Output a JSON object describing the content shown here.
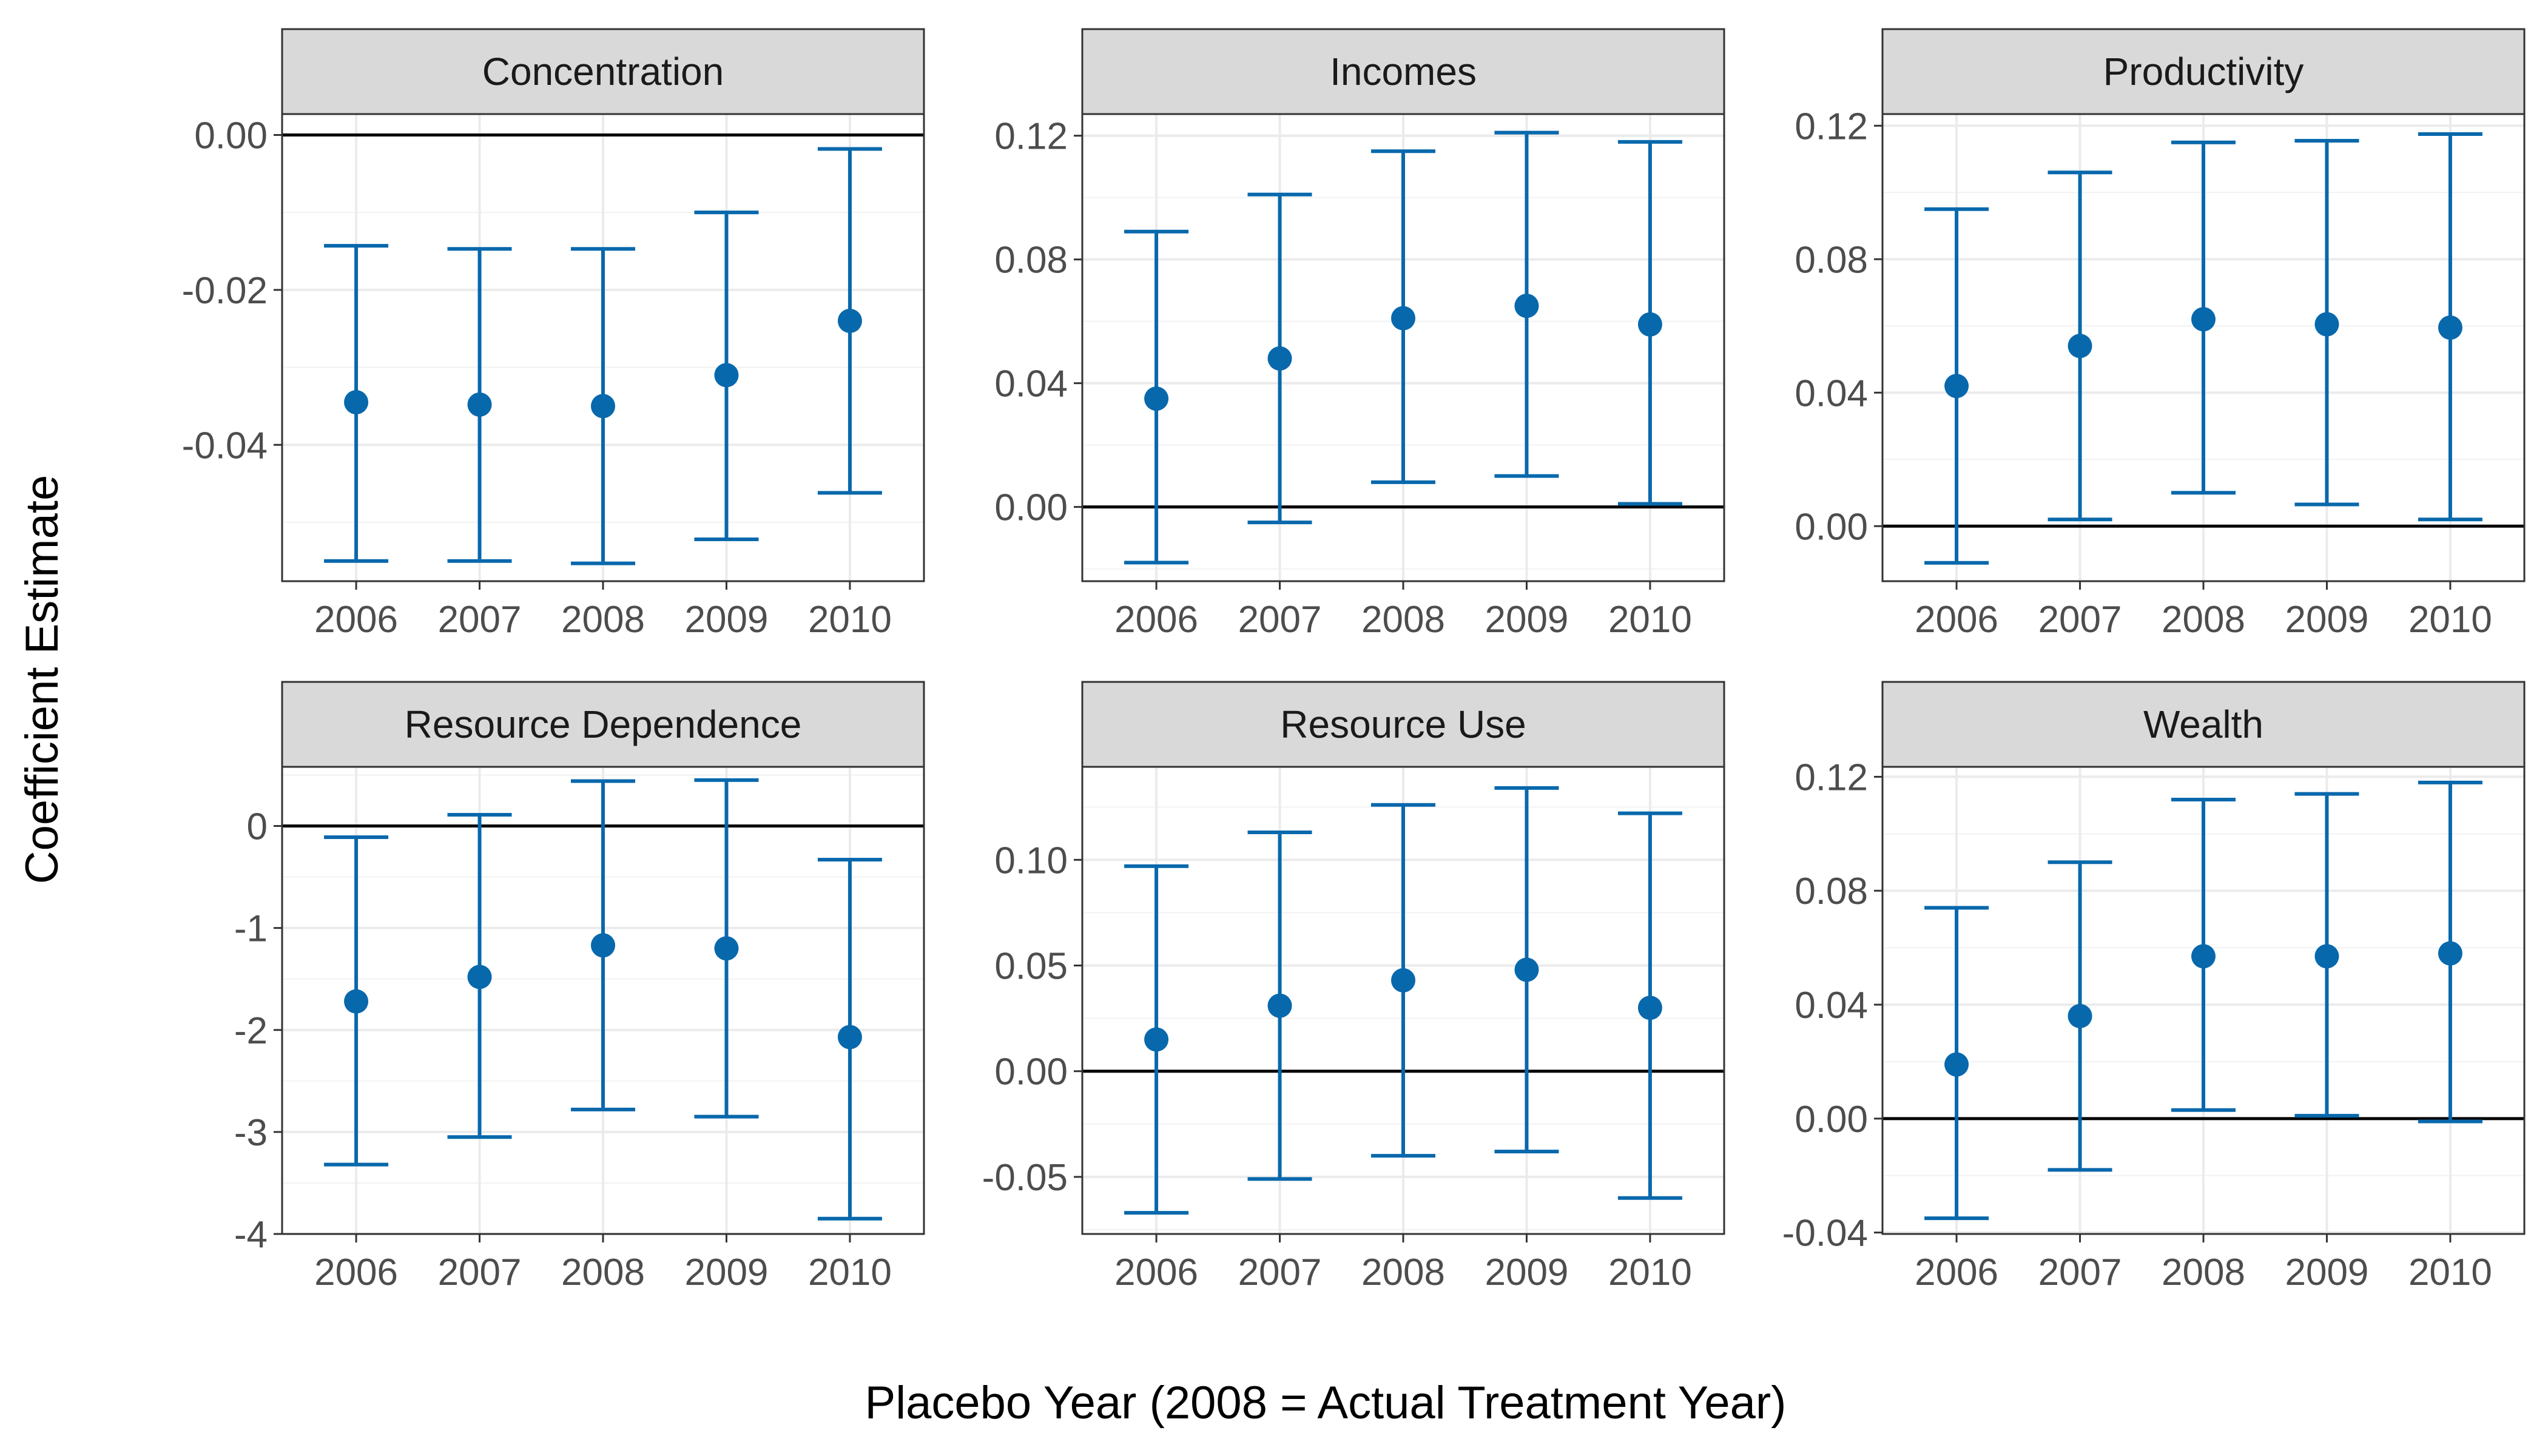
{
  "figure": {
    "xlabel": "Placebo Year (2008 = Actual Treatment Year)",
    "ylabel": "Coefficient Estimate",
    "point_color": "#0868AC",
    "strip_color": "#D9D9D9"
  },
  "chart_data": [
    {
      "type": "scatter",
      "title": "Concentration",
      "categories": [
        "2006",
        "2007",
        "2008",
        "2009",
        "2010"
      ],
      "series": [
        {
          "values": [
            -0.0345,
            -0.0348,
            -0.035,
            -0.031,
            -0.024
          ]
        }
      ],
      "error_bars": {
        "lower": [
          -0.055,
          -0.055,
          -0.0553,
          -0.0522,
          -0.0462
        ],
        "upper": [
          -0.0143,
          -0.0147,
          -0.0147,
          -0.01,
          -0.0018
        ]
      },
      "reference_line": 0,
      "ylim": [
        -0.0576,
        0.0027
      ],
      "yticks": [
        0.0,
        -0.02,
        -0.04
      ],
      "ytick_labels": [
        "0.00",
        "-0.02",
        "-0.04"
      ],
      "ygrid_minor": [
        0.01,
        -0.01,
        -0.03,
        -0.05
      ],
      "grid": true
    },
    {
      "type": "scatter",
      "title": "Incomes",
      "categories": [
        "2006",
        "2007",
        "2008",
        "2009",
        "2010"
      ],
      "series": [
        {
          "values": [
            0.035,
            0.048,
            0.061,
            0.065,
            0.059
          ]
        }
      ],
      "error_bars": {
        "lower": [
          -0.018,
          -0.005,
          0.008,
          0.01,
          0.001
        ],
        "upper": [
          0.089,
          0.101,
          0.115,
          0.121,
          0.118
        ]
      },
      "reference_line": 0,
      "ylim": [
        -0.024,
        0.127
      ],
      "yticks": [
        0.0,
        0.04,
        0.08,
        0.12
      ],
      "ytick_labels": [
        "0.00",
        "0.04",
        "0.08",
        "0.12"
      ],
      "ygrid_minor": [
        -0.02,
        0.02,
        0.06,
        0.1
      ],
      "grid": true
    },
    {
      "type": "scatter",
      "title": "Productivity",
      "categories": [
        "2006",
        "2007",
        "2008",
        "2009",
        "2010"
      ],
      "series": [
        {
          "values": [
            0.042,
            0.054,
            0.062,
            0.0605,
            0.0595
          ]
        }
      ],
      "error_bars": {
        "lower": [
          -0.011,
          0.002,
          0.01,
          0.0065,
          0.002
        ],
        "upper": [
          0.095,
          0.106,
          0.115,
          0.1155,
          0.1175
        ]
      },
      "reference_line": 0,
      "ylim": [
        -0.0165,
        0.1235
      ],
      "yticks": [
        0.0,
        0.04,
        0.08,
        0.12
      ],
      "ytick_labels": [
        "0.00",
        "0.04",
        "0.08",
        "0.12"
      ],
      "ygrid_minor": [
        0.02,
        0.06,
        0.1
      ],
      "grid": true
    },
    {
      "type": "scatter",
      "title": "Resource Dependence",
      "categories": [
        "2006",
        "2007",
        "2008",
        "2009",
        "2010"
      ],
      "series": [
        {
          "values": [
            -1.72,
            -1.48,
            -1.17,
            -1.2,
            -2.07
          ]
        }
      ],
      "error_bars": {
        "lower": [
          -3.32,
          -3.05,
          -2.78,
          -2.85,
          -3.85
        ],
        "upper": [
          -0.11,
          0.11,
          0.44,
          0.45,
          -0.33
        ]
      },
      "reference_line": 0,
      "ylim": [
        -4.0,
        0.58
      ],
      "yticks": [
        0,
        -1,
        -2,
        -3,
        -4
      ],
      "ytick_labels": [
        "0",
        "-1",
        "-2",
        "-3",
        "-4"
      ],
      "ygrid_minor": [
        0.5,
        -0.5,
        -1.5,
        -2.5,
        -3.5
      ],
      "grid": true
    },
    {
      "type": "scatter",
      "title": "Resource Use",
      "categories": [
        "2006",
        "2007",
        "2008",
        "2009",
        "2010"
      ],
      "series": [
        {
          "values": [
            0.015,
            0.031,
            0.043,
            0.048,
            0.03
          ]
        }
      ],
      "error_bars": {
        "lower": [
          -0.067,
          -0.051,
          -0.04,
          -0.038,
          -0.06
        ],
        "upper": [
          0.097,
          0.113,
          0.126,
          0.134,
          0.122
        ]
      },
      "reference_line": 0,
      "ylim": [
        -0.077,
        0.144
      ],
      "yticks": [
        -0.05,
        0.0,
        0.05,
        0.1
      ],
      "ytick_labels": [
        "-0.05",
        "0.00",
        "0.05",
        "0.10"
      ],
      "ygrid_minor": [
        -0.075,
        -0.025,
        0.025,
        0.075,
        0.125
      ],
      "grid": true
    },
    {
      "type": "scatter",
      "title": "Wealth",
      "categories": [
        "2006",
        "2007",
        "2008",
        "2009",
        "2010"
      ],
      "series": [
        {
          "values": [
            0.019,
            0.036,
            0.057,
            0.057,
            0.058
          ]
        }
      ],
      "error_bars": {
        "lower": [
          -0.035,
          -0.018,
          0.003,
          0.001,
          -0.001
        ],
        "upper": [
          0.074,
          0.09,
          0.112,
          0.114,
          0.118
        ]
      },
      "reference_line": 0,
      "ylim": [
        -0.0405,
        0.1235
      ],
      "yticks": [
        -0.04,
        0.0,
        0.04,
        0.08,
        0.12
      ],
      "ytick_labels": [
        "-0.04",
        "0.00",
        "0.04",
        "0.08",
        "0.12"
      ],
      "ygrid_minor": [
        -0.02,
        0.02,
        0.06,
        0.1
      ],
      "grid": true
    }
  ]
}
